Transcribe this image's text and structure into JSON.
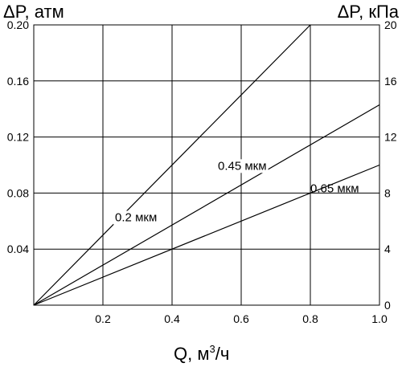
{
  "chart_data": {
    "type": "line",
    "xlabel_main": "Q, м",
    "xlabel_sup": "3",
    "xlabel_tail": "/ч",
    "ylabel_left": "ΔP, атм",
    "ylabel_right": "ΔP, кПа",
    "xlim": [
      0,
      1.0
    ],
    "ylim_left": [
      0,
      0.2
    ],
    "ylim_right": [
      0,
      20
    ],
    "x_ticks": [
      "0.2",
      "0.4",
      "0.6",
      "0.8",
      "1.0"
    ],
    "x_tick_values": [
      0.2,
      0.4,
      0.6,
      0.8,
      1.0
    ],
    "y_ticks_left": [
      "0.04",
      "0.08",
      "0.12",
      "0.16",
      "0.20"
    ],
    "y_tick_values_left": [
      0.04,
      0.08,
      0.12,
      0.16,
      0.2
    ],
    "y_ticks_right": [
      "0",
      "4",
      "8",
      "12",
      "16",
      "20"
    ],
    "y_tick_values_right": [
      0,
      4,
      8,
      12,
      16,
      20
    ],
    "grid": true,
    "series": [
      {
        "name": "0.2 мкм",
        "x": [
          0,
          0.8
        ],
        "y": [
          0,
          0.2
        ]
      },
      {
        "name": "0.45 мкм",
        "x": [
          0,
          1.0
        ],
        "y": [
          0,
          0.143
        ]
      },
      {
        "name": "0.65 мкм",
        "x": [
          0,
          1.0
        ],
        "y": [
          0,
          0.1
        ]
      }
    ]
  }
}
